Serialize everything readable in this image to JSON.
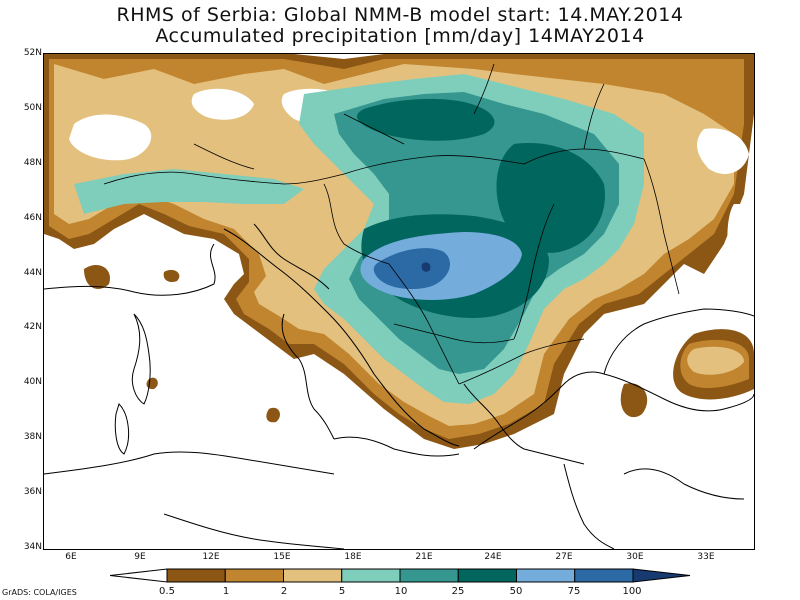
{
  "title": {
    "line1": "RHMS of Serbia: Global NMM-B model   start: 14.MAY.2014",
    "line2": "Accumulated precipitation [mm/day]  14MAY2014"
  },
  "axes": {
    "lat_labels": [
      "52N",
      "50N",
      "48N",
      "46N",
      "44N",
      "42N",
      "40N",
      "38N",
      "36N",
      "34N"
    ],
    "lon_labels": [
      "6E",
      "9E",
      "12E",
      "15E",
      "18E",
      "21E",
      "24E",
      "27E",
      "30E",
      "33E"
    ]
  },
  "legend": {
    "thresholds": [
      "0.5",
      "1",
      "2",
      "5",
      "10",
      "25",
      "50",
      "75",
      "100"
    ],
    "colors": [
      "#8c5614",
      "#c1852f",
      "#e3c07d",
      "#7fcdbb",
      "#35978f",
      "#01665e",
      "#74acdc",
      "#2c6aa5",
      "#173a70"
    ]
  },
  "footer": "GrADS: COLA/IGES",
  "map": {
    "region": "Balkans / Central Europe",
    "max_area": "Western Serbia / Bosnia",
    "background": "#ffffff",
    "coastline_color": "#000000"
  }
}
